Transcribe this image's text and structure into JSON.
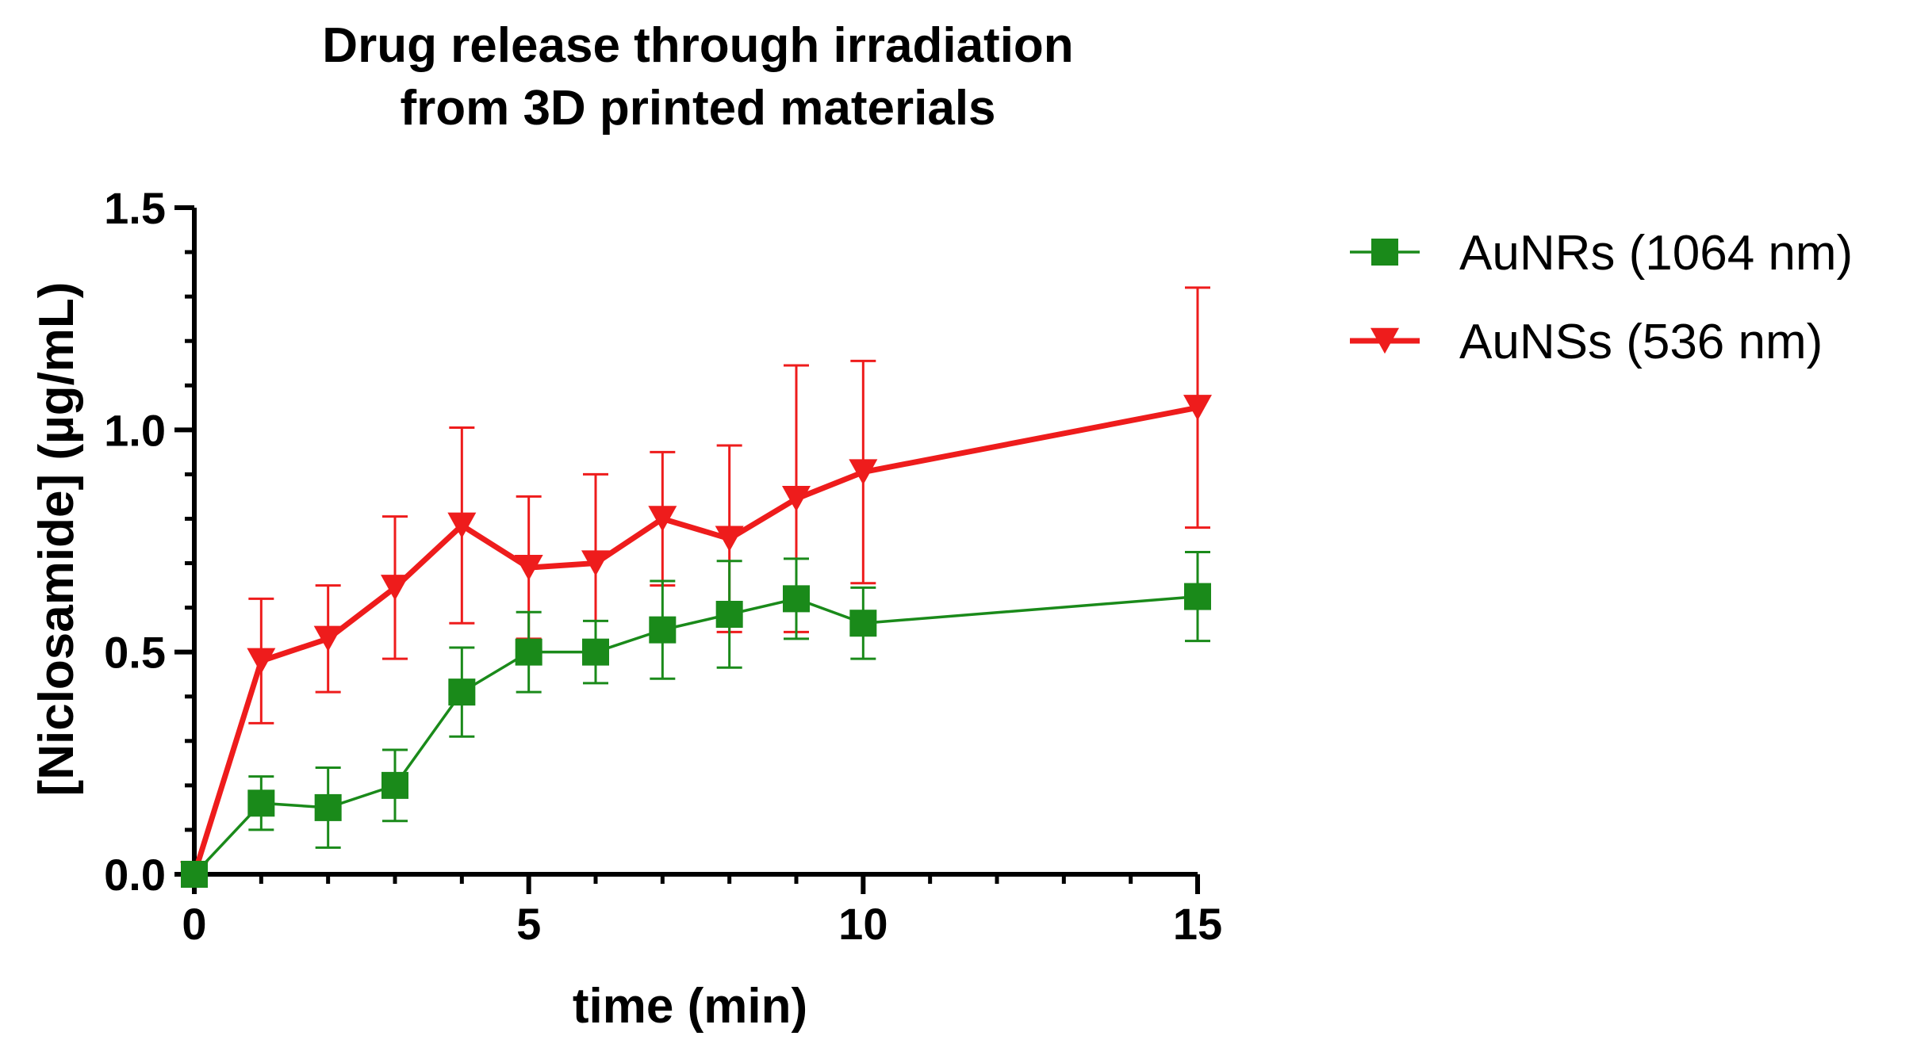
{
  "chart_data": {
    "type": "line",
    "title_lines": [
      "Drug release through irradiation",
      "from 3D printed materials"
    ],
    "xlabel": "time (min)",
    "ylabel": "[Niclosamide] (µg/mL)",
    "xlim": [
      0,
      15
    ],
    "ylim": [
      0,
      1.5
    ],
    "xticks": [
      0,
      5,
      10,
      15
    ],
    "xtick_labels": [
      "0",
      "5",
      "10",
      "15"
    ],
    "yticks": [
      0.0,
      0.5,
      1.0,
      1.5
    ],
    "ytick_labels": [
      "0.0",
      "0.5",
      "1.0",
      "1.5"
    ],
    "grid": false,
    "legend_position": "right",
    "series": [
      {
        "name": "AuNRs (1064 nm)",
        "color": "#1a8a1a",
        "marker": "square",
        "x": [
          0,
          1,
          2,
          3,
          4,
          5,
          6,
          7,
          8,
          9,
          10,
          15
        ],
        "y": [
          0.0,
          0.16,
          0.15,
          0.2,
          0.41,
          0.5,
          0.5,
          0.55,
          0.585,
          0.62,
          0.565,
          0.625
        ],
        "error": [
          0.0,
          0.06,
          0.09,
          0.08,
          0.1,
          0.09,
          0.07,
          0.11,
          0.12,
          0.09,
          0.08,
          0.1
        ]
      },
      {
        "name": "AuNSs (536 nm)",
        "color": "#ee1c1c",
        "marker": "triangle-down",
        "x": [
          0,
          1,
          2,
          3,
          4,
          5,
          6,
          7,
          8,
          9,
          10,
          15
        ],
        "y": [
          0.0,
          0.48,
          0.53,
          0.645,
          0.785,
          0.69,
          0.7,
          0.8,
          0.755,
          0.845,
          0.905,
          1.05
        ],
        "error": [
          0.0,
          0.14,
          0.12,
          0.16,
          0.22,
          0.16,
          0.2,
          0.15,
          0.21,
          0.3,
          0.25,
          0.27
        ]
      }
    ]
  }
}
